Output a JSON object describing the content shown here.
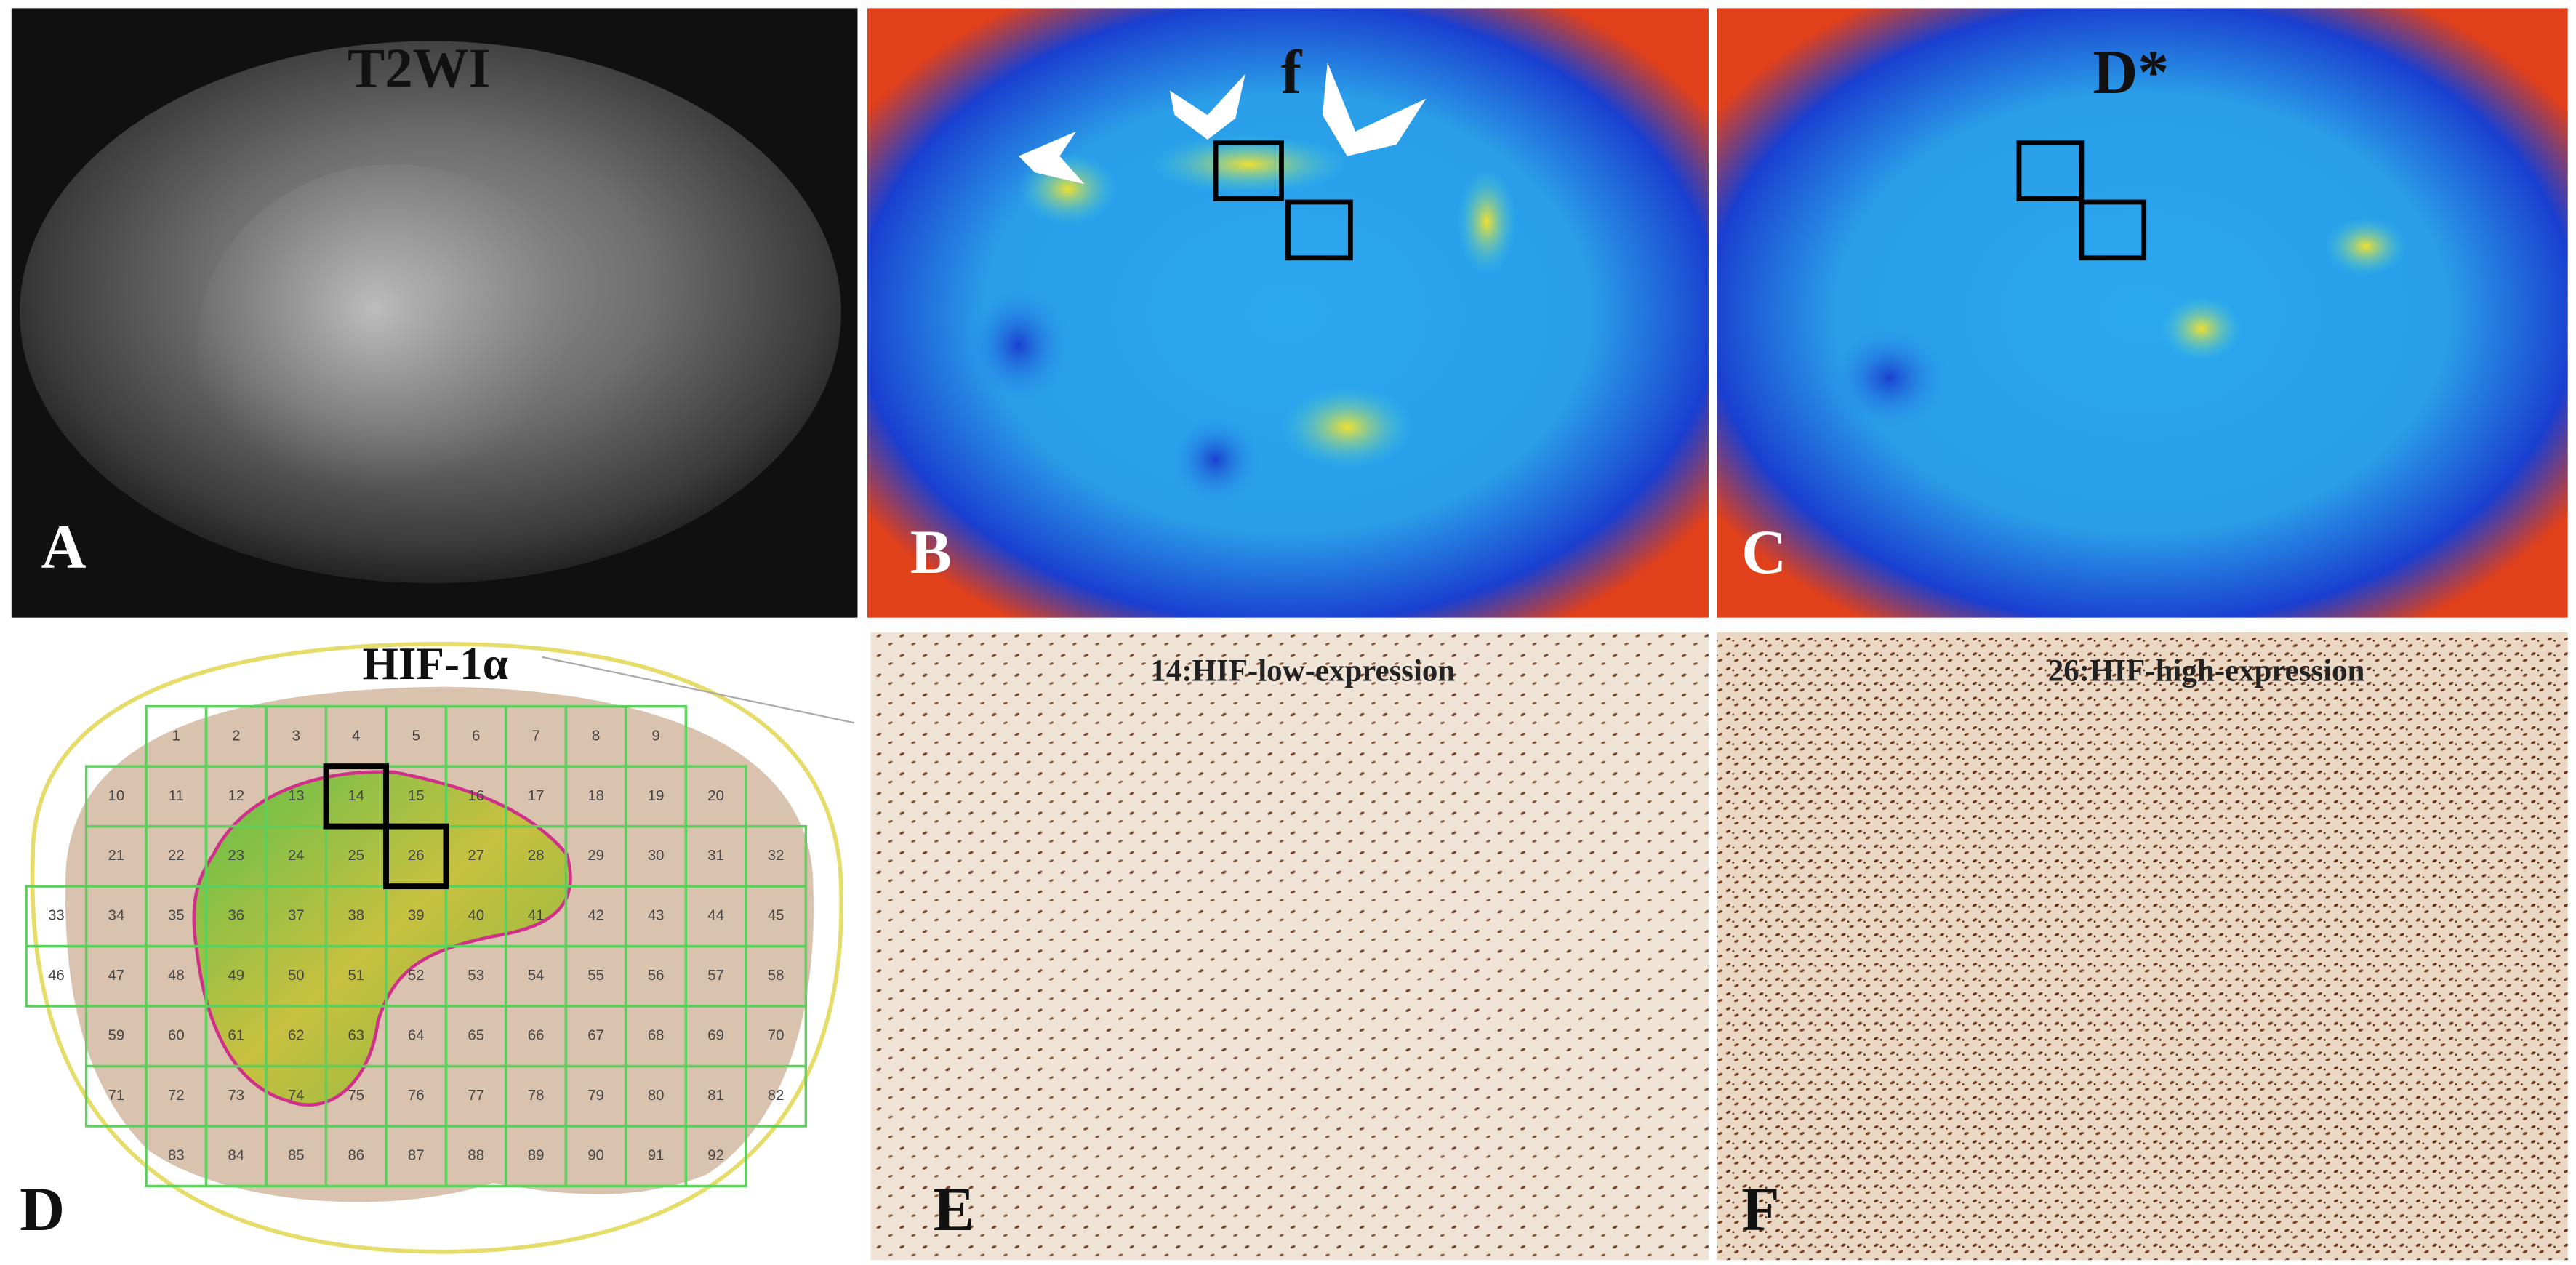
{
  "panels": [
    {
      "label": "A",
      "title": "T2WI"
    },
    {
      "label": "B",
      "title": "f"
    },
    {
      "label": "C",
      "title": "D*"
    },
    {
      "label": "D",
      "title": "HIF-1α"
    },
    {
      "label": "E",
      "title": "14:HIF-low-expression"
    },
    {
      "label": "F",
      "title": "26:HIF-high-expression"
    }
  ],
  "grid": {
    "rows": [
      [
        "1",
        "2",
        "3",
        "4",
        "5",
        "6",
        "7",
        "8",
        "9"
      ],
      [
        "10",
        "11",
        "12",
        "13",
        "14",
        "15",
        "16",
        "17",
        "18",
        "19",
        "20"
      ],
      [
        "21",
        "22",
        "23",
        "24",
        "25",
        "26",
        "27",
        "28",
        "29",
        "30",
        "31",
        "32"
      ],
      [
        "33",
        "34",
        "35",
        "36",
        "37",
        "38",
        "39",
        "40",
        "41",
        "42",
        "43",
        "44",
        "45"
      ],
      [
        "46",
        "47",
        "48",
        "49",
        "50",
        "51",
        "52",
        "53",
        "54",
        "55",
        "56",
        "57",
        "58"
      ],
      [
        "59",
        "60",
        "61",
        "62",
        "63",
        "64",
        "65",
        "66",
        "67",
        "68",
        "69",
        "70"
      ],
      [
        "71",
        "72",
        "73",
        "74",
        "75",
        "76",
        "77",
        "78",
        "79",
        "80",
        "81",
        "82"
      ],
      [
        "83",
        "84",
        "85",
        "86",
        "87",
        "88",
        "89",
        "90",
        "91",
        "92"
      ]
    ]
  }
}
